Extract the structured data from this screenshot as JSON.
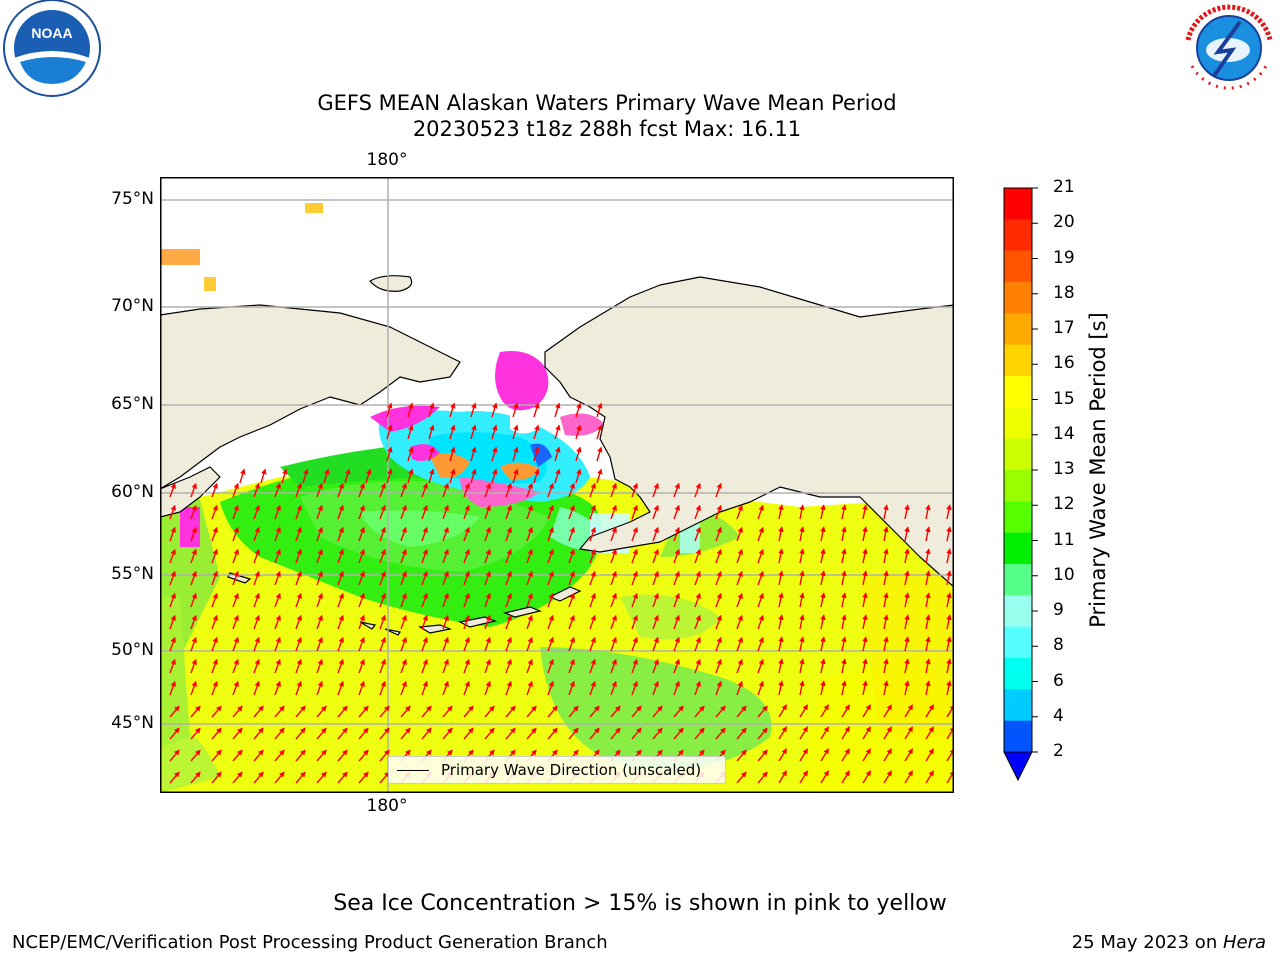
{
  "title": {
    "line1": "GEFS MEAN Alaskan Waters Primary Wave Mean Period",
    "line2": "20230523 t18z 288h fcst   Max: 16.11"
  },
  "logos": {
    "left": {
      "name": "noaa-logo",
      "text": "NOAA"
    },
    "right": {
      "name": "nws-logo",
      "text": "NATIONAL WEATHER SERVICE"
    }
  },
  "map": {
    "lat_labels": [
      "75°N",
      "70°N",
      "65°N",
      "60°N",
      "55°N",
      "50°N",
      "45°N"
    ],
    "lon_label_top": "180°",
    "lon_label_bottom": "180°",
    "colors": {
      "land": "#efecdc",
      "coast": "#000000",
      "grid": "#b0b0b0",
      "arrow": "#ff0000",
      "ice_pink": "#ff33dd"
    },
    "legend_text": "Primary Wave Direction (unscaled)"
  },
  "colorbar": {
    "label": "Primary Wave Mean Period [s]",
    "ticks": [
      "21",
      "20",
      "19",
      "18",
      "17",
      "16",
      "15",
      "14",
      "13",
      "12",
      "11",
      "10",
      "9",
      "8",
      "6",
      "4",
      "2"
    ],
    "colors": [
      "#ff0000",
      "#ff2a00",
      "#ff5500",
      "#ff8000",
      "#ffaa00",
      "#ffd400",
      "#ffff00",
      "#eeff00",
      "#ccff00",
      "#99ff00",
      "#55ff00",
      "#00ee00",
      "#55ff88",
      "#99ffee",
      "#55ffff",
      "#00ffee",
      "#00ccff",
      "#0055ff"
    ],
    "extend_color": "#0000ff"
  },
  "note": "Sea Ice Concentration > 15% is shown in pink to yellow",
  "footer": {
    "left": "NCEP/EMC/Verification Post Processing Product Generation Branch",
    "right_date": "25 May 2023 on ",
    "right_machine": "Hera"
  }
}
